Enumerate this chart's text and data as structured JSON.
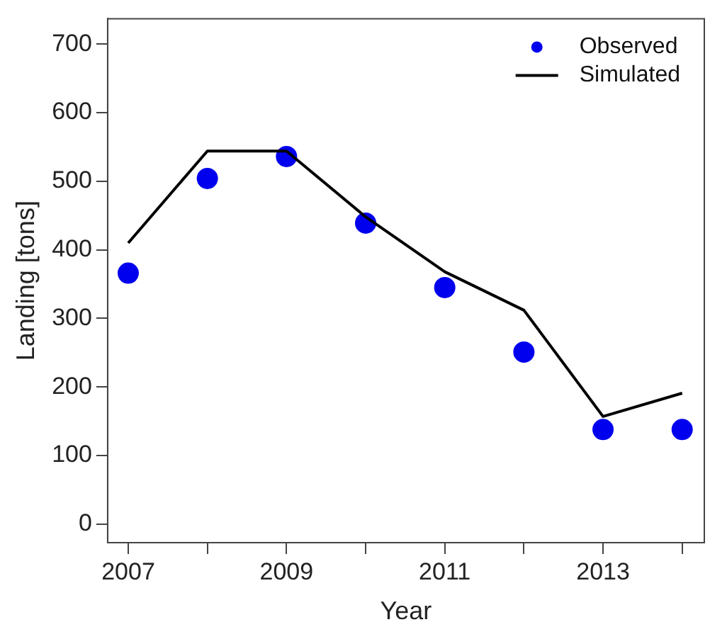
{
  "chart_data": {
    "type": "line",
    "xlabel": "Year",
    "ylabel": "Landing [tons]",
    "x": [
      2007,
      2008,
      2009,
      2010,
      2011,
      2012,
      2013,
      2014
    ],
    "series": [
      {
        "name": "Observed",
        "type": "scatter",
        "color": "#0000ee",
        "marker": "circle",
        "values": [
          366,
          504,
          536,
          439,
          345,
          251,
          138,
          138
        ]
      },
      {
        "name": "Simulated",
        "color": "#000000",
        "marker": "none",
        "line_style": "solid",
        "values": [
          410,
          544,
          544,
          448,
          368,
          312,
          157,
          191
        ]
      }
    ],
    "xlim": [
      2006.74,
      2014.28
    ],
    "ylim": [
      -27,
      737
    ],
    "xticks": [
      2007,
      {
        "value": 2008,
        "label": null
      },
      2009,
      {
        "value": 2010,
        "label": null
      },
      2011,
      {
        "value": 2012,
        "label": null
      },
      2013,
      {
        "value": 2014,
        "label": null
      }
    ],
    "yticks": [
      0,
      100,
      200,
      300,
      400,
      500,
      600,
      700
    ],
    "grid": false,
    "legend": "top right"
  }
}
